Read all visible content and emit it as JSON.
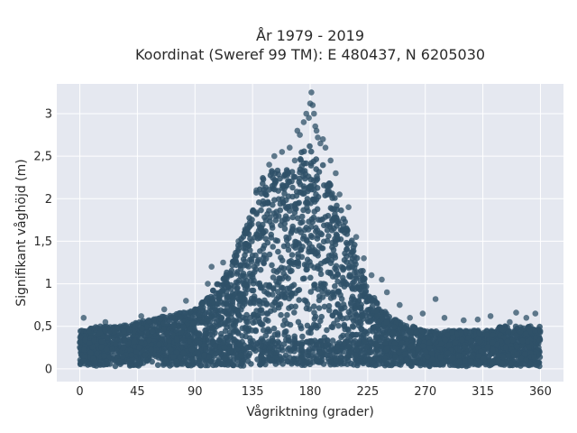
{
  "chart_data": {
    "type": "scatter",
    "title": [
      "År 1979 - 2019",
      "Koordinat (Sweref 99 TM): E 480437, N 6205030"
    ],
    "xlabel": "Vågriktning (grader)",
    "ylabel": "Signifikant våghöjd (m)",
    "xlim": [
      -18,
      378
    ],
    "ylim": [
      -0.15,
      3.35
    ],
    "xticks": [
      0,
      45,
      90,
      135,
      180,
      225,
      270,
      315,
      360
    ],
    "xtick_labels": [
      "0",
      "45",
      "90",
      "135",
      "180",
      "225",
      "270",
      "315",
      "360"
    ],
    "yticks": [
      0,
      0.5,
      1,
      1.5,
      2,
      2.5,
      3
    ],
    "ytick_labels": [
      "0",
      "0,5",
      "1",
      "1,5",
      "2",
      "2,5",
      "3"
    ],
    "grid": true,
    "marker_color": "#2f5168",
    "background": "#e5e8f0",
    "upper_envelope": {
      "x": [
        0,
        15,
        30,
        45,
        60,
        75,
        90,
        100,
        110,
        120,
        130,
        140,
        150,
        160,
        165,
        170,
        175,
        180,
        185,
        190,
        195,
        200,
        210,
        220,
        230,
        240,
        250,
        260,
        270,
        280,
        300,
        315,
        330,
        345,
        360
      ],
      "y": [
        0.45,
        0.5,
        0.5,
        0.55,
        0.6,
        0.65,
        0.7,
        0.85,
        1.05,
        1.3,
        1.7,
        2.2,
        2.35,
        2.4,
        2.3,
        2.45,
        2.6,
        2.65,
        2.5,
        2.4,
        2.2,
        2.0,
        1.7,
        1.2,
        0.85,
        0.65,
        0.55,
        0.5,
        0.45,
        0.45,
        0.45,
        0.45,
        0.5,
        0.5,
        0.5
      ]
    },
    "outliers": {
      "x": [
        3,
        20,
        48,
        66,
        83,
        100,
        103,
        112,
        124,
        138,
        148,
        152,
        158,
        164,
        168,
        170,
        172,
        175,
        177,
        179,
        180,
        181,
        182,
        183,
        184,
        185,
        186,
        188,
        190,
        192,
        196,
        200,
        203,
        210,
        216,
        222,
        228,
        236,
        240,
        250,
        258,
        268,
        278,
        285,
        300,
        311,
        321,
        336,
        341,
        349,
        356
      ],
      "y": [
        0.6,
        0.55,
        0.62,
        0.7,
        0.8,
        1.0,
        1.2,
        1.25,
        1.5,
        2.1,
        2.4,
        2.5,
        2.55,
        2.6,
        2.45,
        2.8,
        2.75,
        2.9,
        3.0,
        2.95,
        3.12,
        3.25,
        3.1,
        3.0,
        2.85,
        2.8,
        2.72,
        2.65,
        2.7,
        2.6,
        2.45,
        2.3,
        2.05,
        1.9,
        1.55,
        1.3,
        1.1,
        1.05,
        0.9,
        0.75,
        0.6,
        0.65,
        0.82,
        0.6,
        0.57,
        0.58,
        0.62,
        0.55,
        0.66,
        0.6,
        0.65
      ]
    }
  }
}
